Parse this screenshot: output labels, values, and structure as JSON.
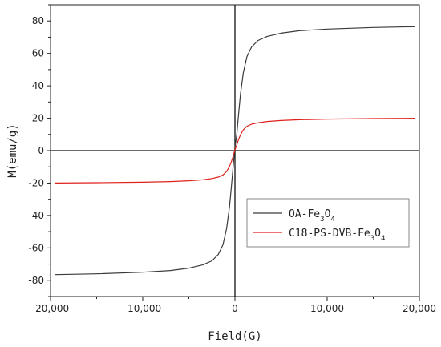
{
  "chart_data": {
    "type": "line",
    "title": "",
    "xlabel": "Field(G)",
    "ylabel": "M(emu/g)",
    "xlim": [
      -20000,
      20000
    ],
    "ylim": [
      -90,
      90
    ],
    "xticks": [
      -20000,
      -10000,
      0,
      10000,
      20000
    ],
    "xtick_labels": [
      "-20,000",
      "-10,000",
      "0",
      "10,000",
      "20,000"
    ],
    "yticks": [
      -80,
      -60,
      -40,
      -20,
      0,
      20,
      40,
      60,
      80
    ],
    "ytick_labels": [
      "-80",
      "-60",
      "-40",
      "-20",
      "0",
      "20",
      "40",
      "60",
      "80"
    ],
    "grid": false,
    "zero_lines": true,
    "legend_position": "right",
    "series": [
      {
        "name": "OA-Fe3O4",
        "name_parts": {
          "prefix": "OA-Fe",
          "sub1": "3",
          "mid": "O",
          "sub2": "4"
        },
        "color": "#3a3a3a",
        "x": [
          -19500,
          -15000,
          -10000,
          -7000,
          -5000,
          -3500,
          -2500,
          -1800,
          -1300,
          -900,
          -600,
          -400,
          -200,
          0,
          200,
          400,
          600,
          900,
          1300,
          1800,
          2500,
          3500,
          5000,
          7000,
          10000,
          15000,
          19500
        ],
        "y": [
          -76.5,
          -76,
          -75,
          -74,
          -72.5,
          -70.5,
          -68,
          -64,
          -58,
          -48,
          -35,
          -23,
          -10,
          2,
          10,
          23,
          35,
          48,
          58,
          64,
          68,
          70.5,
          72.5,
          74,
          75,
          76,
          76.5
        ]
      },
      {
        "name": "C18-PS-DVB-Fe3O4",
        "name_parts": {
          "prefix": "C18-PS-DVB-Fe",
          "sub1": "3",
          "mid": "O",
          "sub2": "4"
        },
        "color": "#e0201b",
        "x": [
          -19500,
          -15000,
          -10000,
          -7000,
          -5000,
          -3500,
          -2500,
          -1800,
          -1300,
          -900,
          -600,
          -400,
          -200,
          0,
          200,
          400,
          600,
          900,
          1300,
          1800,
          2500,
          3500,
          5000,
          7000,
          10000,
          15000,
          19500
        ],
        "y": [
          -20,
          -19.8,
          -19.5,
          -19.1,
          -18.6,
          -18,
          -17.2,
          -16.3,
          -15,
          -12.8,
          -9.8,
          -7,
          -3.5,
          0.5,
          3.5,
          7,
          9.8,
          12.8,
          15,
          16.3,
          17.2,
          18,
          18.6,
          19.1,
          19.5,
          19.8,
          20
        ]
      }
    ]
  }
}
